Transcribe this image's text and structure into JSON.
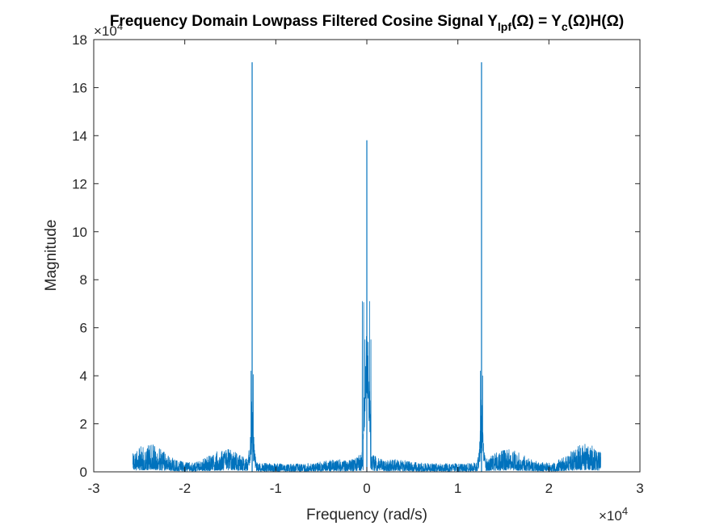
{
  "chart_data": {
    "type": "line",
    "title": {
      "prefix": "Frequency Domain Lowpass Filtered Cosine Signal Y",
      "sub1": "lpf",
      "mid1": "(Ω) = Y",
      "sub2": "c",
      "suffix": "(Ω)H(Ω)"
    },
    "xlabel": "Frequency (rad/s)",
    "ylabel": "Magnitude",
    "x_exponent_label": {
      "base": "×10",
      "exp": "4"
    },
    "y_exponent_label": {
      "base": "×10",
      "exp": "4"
    },
    "xlim": [
      -30000,
      30000
    ],
    "ylim": [
      0,
      180000
    ],
    "x_ticks": [
      -30000,
      -20000,
      -10000,
      0,
      10000,
      20000,
      30000
    ],
    "x_tick_labels": [
      "-3",
      "-2",
      "-1",
      "0",
      "1",
      "2",
      "3"
    ],
    "y_ticks": [
      0,
      20000,
      40000,
      60000,
      80000,
      100000,
      120000,
      140000,
      160000,
      180000
    ],
    "y_tick_labels": [
      "0",
      "2",
      "4",
      "6",
      "8",
      "10",
      "12",
      "14",
      "16",
      "18"
    ],
    "grid": false,
    "line_color": "#0072BD",
    "series": [
      {
        "x_range": [
          -25700,
          25700
        ],
        "peaks": [
          {
            "x": -12600,
            "y": 170500
          },
          {
            "x": 0,
            "y": 138000
          },
          {
            "x": 12600,
            "y": 170500
          }
        ]
      }
    ]
  }
}
